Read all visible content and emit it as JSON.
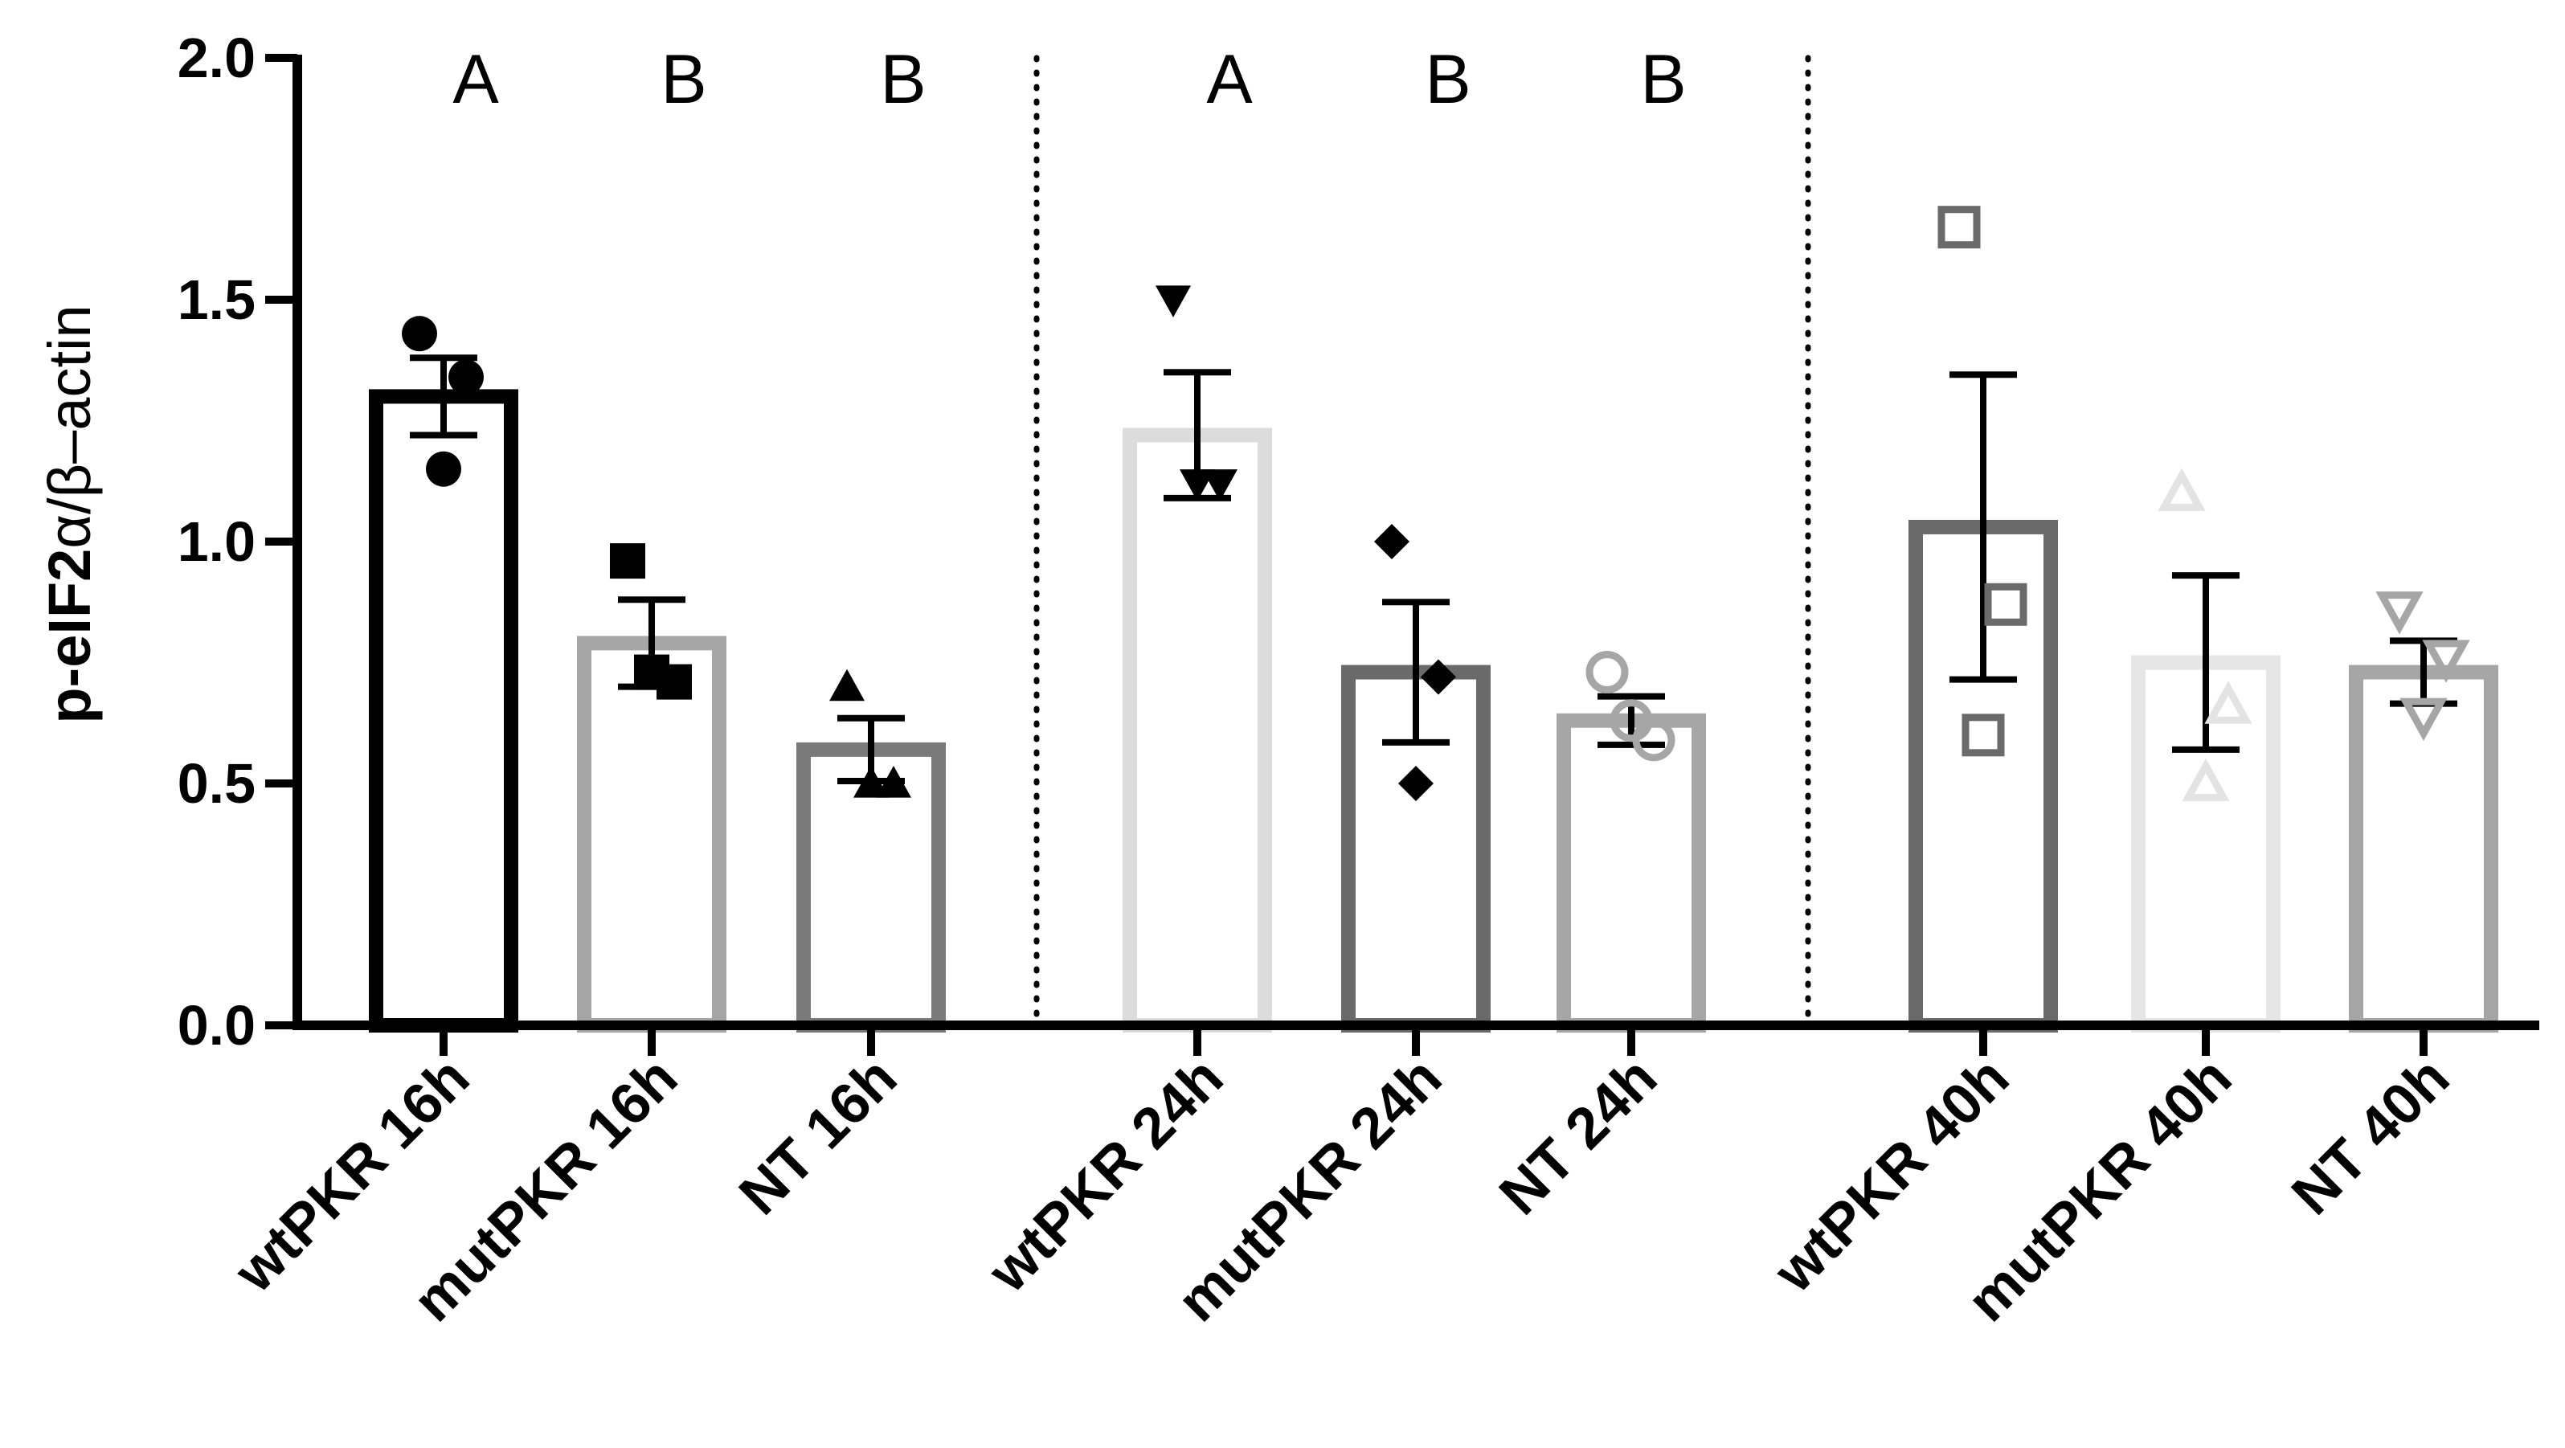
{
  "chart_data": {
    "type": "bar",
    "ylabel": {
      "prefix": "p-eIF2",
      "alpha": "α",
      "suffix": "/β–actin"
    },
    "ylim": [
      0,
      2
    ],
    "yticks": [
      {
        "value": 0.0,
        "label": "0.0"
      },
      {
        "value": 0.5,
        "label": "0.5"
      },
      {
        "value": 1.0,
        "label": "1.0"
      },
      {
        "value": 1.5,
        "label": "1.5"
      },
      {
        "value": 2.0,
        "label": "2.0"
      }
    ],
    "categories": [
      "wtPKR 16h",
      "mutPKR 16h",
      "NT 16h",
      "wtPKR 24h",
      "mutPKR 24h",
      "NT 24h",
      "wtPKR 40h",
      "mutPKR 40h",
      "NT 40h"
    ],
    "values": [
      1.3,
      0.79,
      0.57,
      1.22,
      0.73,
      0.63,
      1.03,
      0.75,
      0.73
    ],
    "sem": [
      0.08,
      0.09,
      0.065,
      0.13,
      0.145,
      0.05,
      0.315,
      0.18,
      0.065
    ],
    "points": [
      [
        1.43,
        1.34,
        1.15
      ],
      [
        0.96,
        0.71,
        0.73
      ],
      [
        0.7,
        0.5,
        0.5
      ],
      [
        1.5,
        1.12,
        1.12
      ],
      [
        1.0,
        0.72,
        0.5
      ],
      [
        0.73,
        0.59,
        0.63
      ],
      [
        1.65,
        0.87,
        0.6
      ],
      [
        1.1,
        0.66,
        0.5
      ],
      [
        0.86,
        0.76,
        0.64
      ]
    ],
    "markers": [
      "circle",
      "square",
      "triangle-up",
      "triangle-down",
      "diamond",
      "circle-open",
      "square-open",
      "triangle-up-open",
      "triangle-down-open"
    ],
    "bar_colors": [
      "#000000",
      "#a6a6a6",
      "#7a7a7a",
      "#dcdcdc",
      "#6a6a6a",
      "#a6a6a6",
      "#6a6a6a",
      "#e6e6e6",
      "#a6a6a6"
    ],
    "marker_colors": [
      "#000000",
      "#000000",
      "#000000",
      "#000000",
      "#000000",
      "#a6a6a6",
      "#6a6a6a",
      "#e3e3e3",
      "#a6a6a6"
    ],
    "significance_letters": [
      "A",
      "B",
      "B",
      "A",
      "B",
      "B",
      "",
      "",
      ""
    ],
    "group_separators_after": [
      2,
      5
    ]
  }
}
